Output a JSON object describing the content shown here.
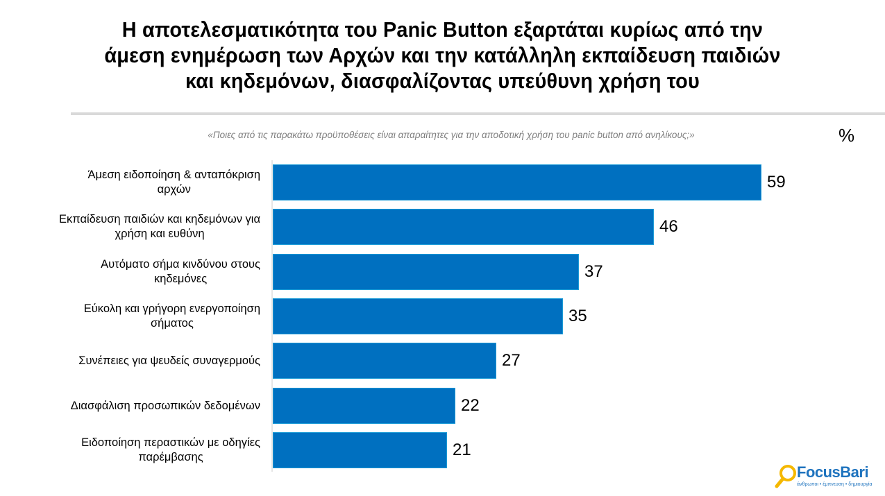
{
  "title": {
    "line1": "Η αποτελεσματικότητα του Panic Button εξαρτάται κυρίως από την",
    "line2": "άμεση ενημέρωση των Αρχών και την κατάλληλη εκπαίδευση παιδιών",
    "line3": "και κηδεμόνων, διασφαλίζοντας υπεύθυνη χρήση του"
  },
  "question": "«Ποιες από τις παρακάτω προϋποθέσεις είναι απαραίτητες για την αποδοτική χρήση του panic button από ανηλίκους;»",
  "unit_label": "%",
  "bar_color": "#0070c0",
  "logo": {
    "name": "FocusBari",
    "tagline": "άνθρωποι • έμπνευση • δημιουργία",
    "accent_color": "#f5b800",
    "brand_color": "#1e73be"
  },
  "chart_data": {
    "type": "bar",
    "orientation": "horizontal",
    "title": "Η αποτελεσματικότητα του Panic Button εξαρτάται κυρίως από την άμεση ενημέρωση των Αρχών και την κατάλληλη εκπαίδευση παιδιών και κηδεμόνων, διασφαλίζοντας υπεύθυνη χρήση του",
    "subtitle": "«Ποιες από τις παρακάτω προϋποθέσεις είναι απαραίτητες για την αποδοτική χρήση του panic button από ανηλίκους;»",
    "xlabel": "%",
    "ylabel": "",
    "categories": [
      "Άμεση ειδοποίηση & ανταπόκριση αρχών",
      "Εκπαίδευση παιδιών και κηδεμόνων για χρήση και ευθύνη",
      "Αυτόματο σήμα κινδύνου στους κηδεμόνες",
      "Εύκολη και γρήγορη ενεργοποίηση σήματος",
      "Συνέπειες για ψευδείς συναγερμούς",
      "Διασφάλιση προσωπικών δεδομένων",
      "Ειδοποίηση περαστικών με οδηγίες παρέμβασης"
    ],
    "values": [
      59,
      46,
      37,
      35,
      27,
      22,
      21
    ],
    "data_labels": true,
    "grid": false,
    "legend": "none",
    "xlim": [
      0,
      59
    ]
  },
  "rows": [
    {
      "label_line1": "Άμεση ειδοποίηση & ανταπόκριση",
      "label_line2": "αρχών",
      "value": "59"
    },
    {
      "label_line1": "Εκπαίδευση παιδιών και κηδεμόνων για",
      "label_line2": "χρήση και ευθύνη",
      "value": "46"
    },
    {
      "label_line1": "Αυτόματο σήμα κινδύνου στους",
      "label_line2": "κηδεμόνες",
      "value": "37"
    },
    {
      "label_line1": "Εύκολη και γρήγορη ενεργοποίηση",
      "label_line2": "σήματος",
      "value": "35"
    },
    {
      "label_line1": "Συνέπειες για ψευδείς συναγερμούς",
      "label_line2": "",
      "value": "27"
    },
    {
      "label_line1": "Διασφάλιση προσωπικών δεδομένων",
      "label_line2": "",
      "value": "22"
    },
    {
      "label_line1": "Ειδοποίηση περαστικών με οδηγίες",
      "label_line2": "παρέμβασης",
      "value": "21"
    }
  ]
}
